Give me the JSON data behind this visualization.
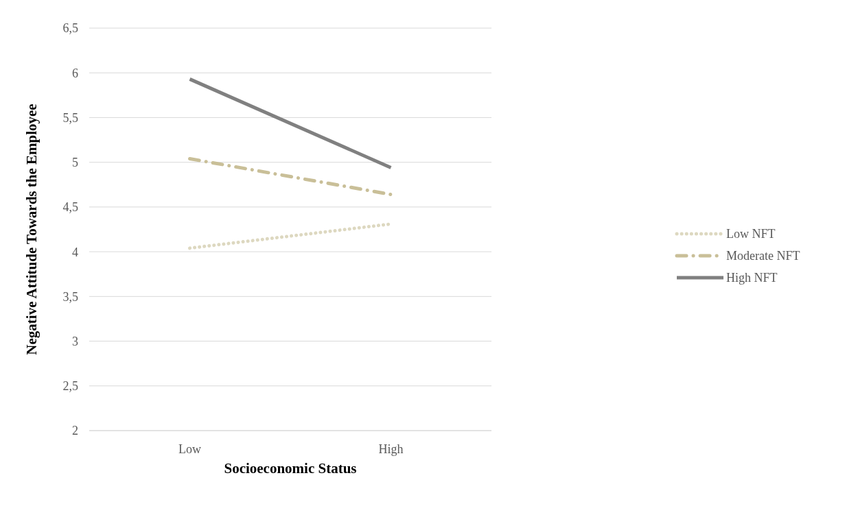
{
  "chart_data": {
    "type": "line",
    "xlabel": "Socioeconomic Status",
    "ylabel": "Negative Attitude Towards the Employee",
    "categories": [
      "Low",
      "High"
    ],
    "series": [
      {
        "name": "Low NFT",
        "color": "#ddd8c0",
        "values": [
          4.04,
          4.31
        ],
        "line_style": "dotted"
      },
      {
        "name": "Moderate NFT",
        "color": "#c9bf98",
        "values": [
          5.04,
          4.64
        ],
        "line_style": "dashed"
      },
      {
        "name": "High NFT",
        "color": "#808080",
        "values": [
          5.93,
          4.94
        ],
        "line_style": "solid"
      }
    ],
    "ylim": [
      2,
      6.5
    ],
    "yticks": [
      2,
      {
        "value": 2.5,
        "label": "2,5"
      },
      3,
      {
        "value": 3.5,
        "label": "3,5"
      },
      4,
      {
        "value": 4.5,
        "label": "4,5"
      },
      5,
      {
        "value": 5.5,
        "label": "5,5"
      },
      6,
      {
        "value": 6.5,
        "label": "6,5"
      }
    ],
    "grid": "y",
    "legend": "right",
    "marker": "none"
  }
}
